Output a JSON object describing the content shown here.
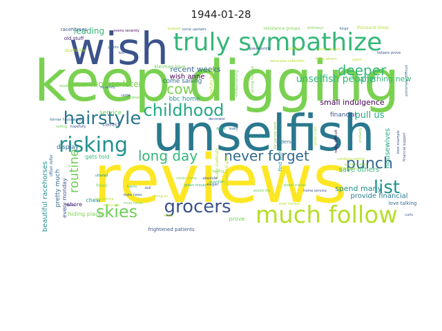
{
  "title": "1944-01-28",
  "words": [
    {
      "text": "reviews",
      "color": "#fde725"
    },
    {
      "text": "keep digging",
      "color": "#7ad151"
    },
    {
      "text": "unselfish",
      "color": "#2a788e"
    },
    {
      "text": "wish",
      "color": "#3b528b"
    },
    {
      "text": "truly sympathize",
      "color": "#35b779"
    },
    {
      "text": "much follow",
      "color": "#b5de2b"
    },
    {
      "text": "grocers",
      "color": "#3b528b"
    },
    {
      "text": "risking",
      "color": "#21918c"
    },
    {
      "text": "childhood",
      "color": "#22a884"
    },
    {
      "text": "hairstyle",
      "color": "#2a788e"
    },
    {
      "text": "punch",
      "color": "#31688e"
    },
    {
      "text": "list",
      "color": "#21918c"
    },
    {
      "text": "never forget",
      "color": "#31688e"
    },
    {
      "text": "long day",
      "color": "#35b779"
    },
    {
      "text": "skies",
      "color": "#6ece58"
    },
    {
      "text": "deeper",
      "color": "#35b779"
    },
    {
      "text": "cow",
      "color": "#7ad151"
    },
    {
      "text": "routine",
      "color": "#6ece58"
    },
    {
      "text": "unselfish people",
      "color": "#35b779"
    },
    {
      "text": "pull us",
      "color": "#22a884"
    },
    {
      "text": "movies later",
      "color": "#7ad151"
    },
    {
      "text": "small indulgence",
      "color": "#440154"
    },
    {
      "text": "anything new",
      "color": "#35b779"
    },
    {
      "text": "recent weeks",
      "color": "#31688e"
    },
    {
      "text": "wish anne",
      "color": "#440154"
    },
    {
      "text": "come sailing",
      "color": "#31688e"
    },
    {
      "text": "bbc home",
      "color": "#21918c"
    },
    {
      "text": "leading",
      "color": "#35b779"
    },
    {
      "text": "spend many",
      "color": "#21918c"
    },
    {
      "text": "save others",
      "color": "#35b779"
    },
    {
      "text": "housewives",
      "color": "#22a884"
    },
    {
      "text": "provide financial",
      "color": "#2a788e"
    },
    {
      "text": "financial",
      "color": "#3b528b"
    },
    {
      "text": "display",
      "color": "#31688e"
    },
    {
      "text": "service",
      "color": "#6ece58"
    },
    {
      "text": "beautiful racehorses",
      "color": "#21918c"
    },
    {
      "text": "pretty much",
      "color": "#31688e"
    },
    {
      "text": "every monday",
      "color": "#3b528b"
    },
    {
      "text": "gets told",
      "color": "#35b779"
    },
    {
      "text": "hiding places",
      "color": "#7ad151"
    },
    {
      "text": "shore",
      "color": "#482878"
    },
    {
      "text": "chew",
      "color": "#21918c"
    },
    {
      "text": "frightened patients",
      "color": "#3b528b"
    },
    {
      "text": "love talking",
      "color": "#31688e"
    },
    {
      "text": "prove",
      "color": "#6ece58"
    },
    {
      "text": "kleiman love",
      "color": "#6ece58"
    },
    {
      "text": "old stuff",
      "color": "#482878"
    },
    {
      "text": "racehorses",
      "color": "#3b528b"
    },
    {
      "text": "elders",
      "color": "#2a788e"
    },
    {
      "text": "find work",
      "color": "#21918c"
    },
    {
      "text": "correct",
      "color": "#3b528b"
    },
    {
      "text": "moms recently",
      "color": "#440154"
    },
    {
      "text": "resistance groups",
      "color": "#7ad151"
    },
    {
      "text": "thousand times",
      "color": "#b5de2b"
    },
    {
      "text": "hopefully bring",
      "color": "#b5de2b"
    },
    {
      "text": "embellishing",
      "color": "#6ece58"
    },
    {
      "text": "leaky rowboats",
      "color": "#b5de2b"
    },
    {
      "text": "proverbial pipe",
      "color": "#b5de2b"
    },
    {
      "text": "stunts like",
      "color": "#b5de2b"
    },
    {
      "text": "often refer",
      "color": "#31688e"
    },
    {
      "text": "eager",
      "color": "#31688e"
    },
    {
      "text": "freed",
      "color": "#7ad151"
    },
    {
      "text": "tables",
      "color": "#482878"
    },
    {
      "text": "uttered",
      "color": "#21918c"
    },
    {
      "text": "indulgence",
      "color": "#b5de2b"
    },
    {
      "text": "every job",
      "color": "#b5de2b"
    },
    {
      "text": "sundays sorting",
      "color": "#b5de2b"
    },
    {
      "text": "home service",
      "color": "#3b528b"
    },
    {
      "text": "secretly wish",
      "color": "#7ad151"
    },
    {
      "text": "still spend",
      "color": "#b5de2b"
    },
    {
      "text": "green mouse",
      "color": "#6ece58"
    },
    {
      "text": "would dig",
      "color": "#6ece58"
    },
    {
      "text": "ever correct",
      "color": "#b5de2b"
    },
    {
      "text": "curls",
      "color": "#3b528b"
    },
    {
      "text": "must never",
      "color": "#7ad151"
    },
    {
      "text": "bring us",
      "color": "#b5de2b"
    },
    {
      "text": "dull",
      "color": "#3b528b"
    },
    {
      "text": "harris",
      "color": "#35b779"
    },
    {
      "text": "state news",
      "color": "#31688e"
    },
    {
      "text": "worry",
      "color": "#b5de2b"
    },
    {
      "text": "come upstairs",
      "color": "#31688e"
    },
    {
      "text": "praised",
      "color": "#b5de2b"
    },
    {
      "text": "birthdays",
      "color": "#7ad151"
    },
    {
      "text": "forge",
      "color": "#31688e"
    },
    {
      "text": "bring flowers",
      "color": "#b5de2b"
    },
    {
      "text": "helpers prove",
      "color": "#3b528b"
    },
    {
      "text": "yoam",
      "color": "#b5de2b"
    },
    {
      "text": "copying",
      "color": "#b5de2b"
    },
    {
      "text": "goes worldly",
      "color": "#3b528b"
    },
    {
      "text": "decorator collection",
      "color": "#b5de2b"
    },
    {
      "text": "many others",
      "color": "#b5de2b"
    },
    {
      "text": "extremely difficult",
      "color": "#31688e"
    },
    {
      "text": "aching muscles",
      "color": "#7ad151"
    },
    {
      "text": "ration",
      "color": "#7ad151"
    },
    {
      "text": "rattle",
      "color": "#3b528b"
    },
    {
      "text": "lost",
      "color": "#3b528b"
    },
    {
      "text": "plants",
      "color": "#31688e"
    },
    {
      "text": "weekly lunches",
      "color": "#7ad151"
    },
    {
      "text": "so safely",
      "color": "#31688e"
    },
    {
      "text": "decorator",
      "color": "#3b528b"
    },
    {
      "text": "former housewives",
      "color": "#31688e"
    },
    {
      "text": "sailing",
      "color": "#6ece58"
    },
    {
      "text": "hopefully",
      "color": "#3b528b"
    },
    {
      "text": "leaky",
      "color": "#31688e"
    },
    {
      "text": "developed",
      "color": "#21918c"
    },
    {
      "text": "far narrow beds",
      "color": "#7ad151"
    },
    {
      "text": "great toast",
      "color": "#b5de2b"
    },
    {
      "text": "really difficult",
      "color": "#440154"
    },
    {
      "text": "best example",
      "color": "#3b528b"
    },
    {
      "text": "financial support",
      "color": "#3b528b"
    },
    {
      "text": "probably",
      "color": "#7ad151"
    },
    {
      "text": "absolute",
      "color": "#3b528b"
    },
    {
      "text": "never come",
      "color": "#7ad151"
    },
    {
      "text": "feeling",
      "color": "#7ad151"
    },
    {
      "text": "guardian",
      "color": "#35b779"
    },
    {
      "text": "green mouse",
      "color": "#35b779"
    },
    {
      "text": "decor",
      "color": "#35b779"
    }
  ]
}
